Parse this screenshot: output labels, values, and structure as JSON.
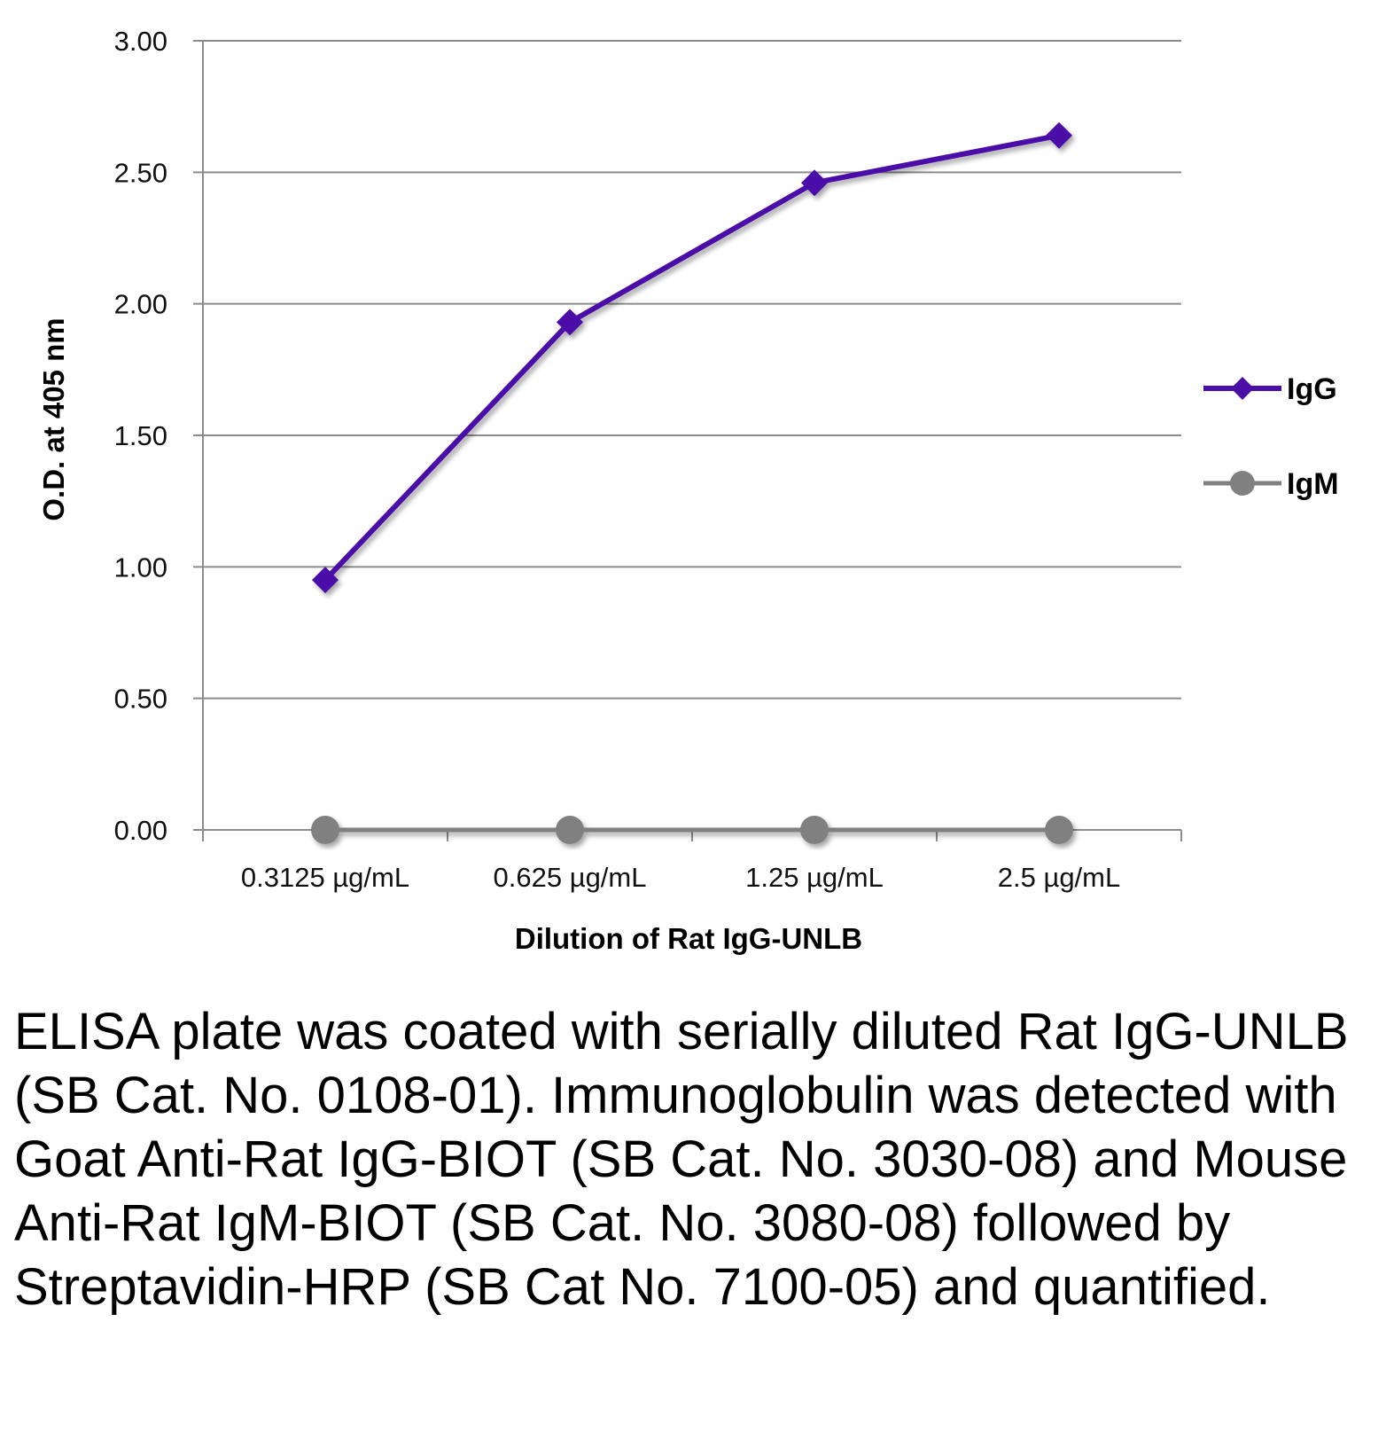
{
  "chart_data": {
    "type": "line",
    "title": "",
    "xlabel": "Dilution of Rat IgG-UNLB",
    "ylabel": "O.D. at 405 nm",
    "categories": [
      "0.3125 µg/mL",
      "0.625 µg/mL",
      "1.25 µg/mL",
      "2.5 µg/mL"
    ],
    "ylim": [
      0,
      3.0
    ],
    "yticks": [
      "0.00",
      "0.50",
      "1.00",
      "1.50",
      "2.00",
      "2.50",
      "3.00"
    ],
    "grid": true,
    "legend_position": "right",
    "series": [
      {
        "name": "IgG",
        "values": [
          0.95,
          1.93,
          2.46,
          2.64
        ],
        "color": "#4b0fa8",
        "marker": "diamond"
      },
      {
        "name": "IgM",
        "values": [
          0.0,
          0.0,
          0.0,
          0.0
        ],
        "color": "#808080",
        "marker": "circle"
      }
    ]
  },
  "caption": "ELISA plate was coated with serially diluted Rat IgG-UNLB (SB Cat. No. 0108-01). Immunoglobulin was detected with Goat Anti-Rat IgG-BIOT (SB Cat. No. 3030-08) and Mouse Anti-Rat IgM-BIOT (SB Cat. No. 3080-08) followed by Streptavidin-HRP (SB Cat No. 7100-05) and quantified."
}
